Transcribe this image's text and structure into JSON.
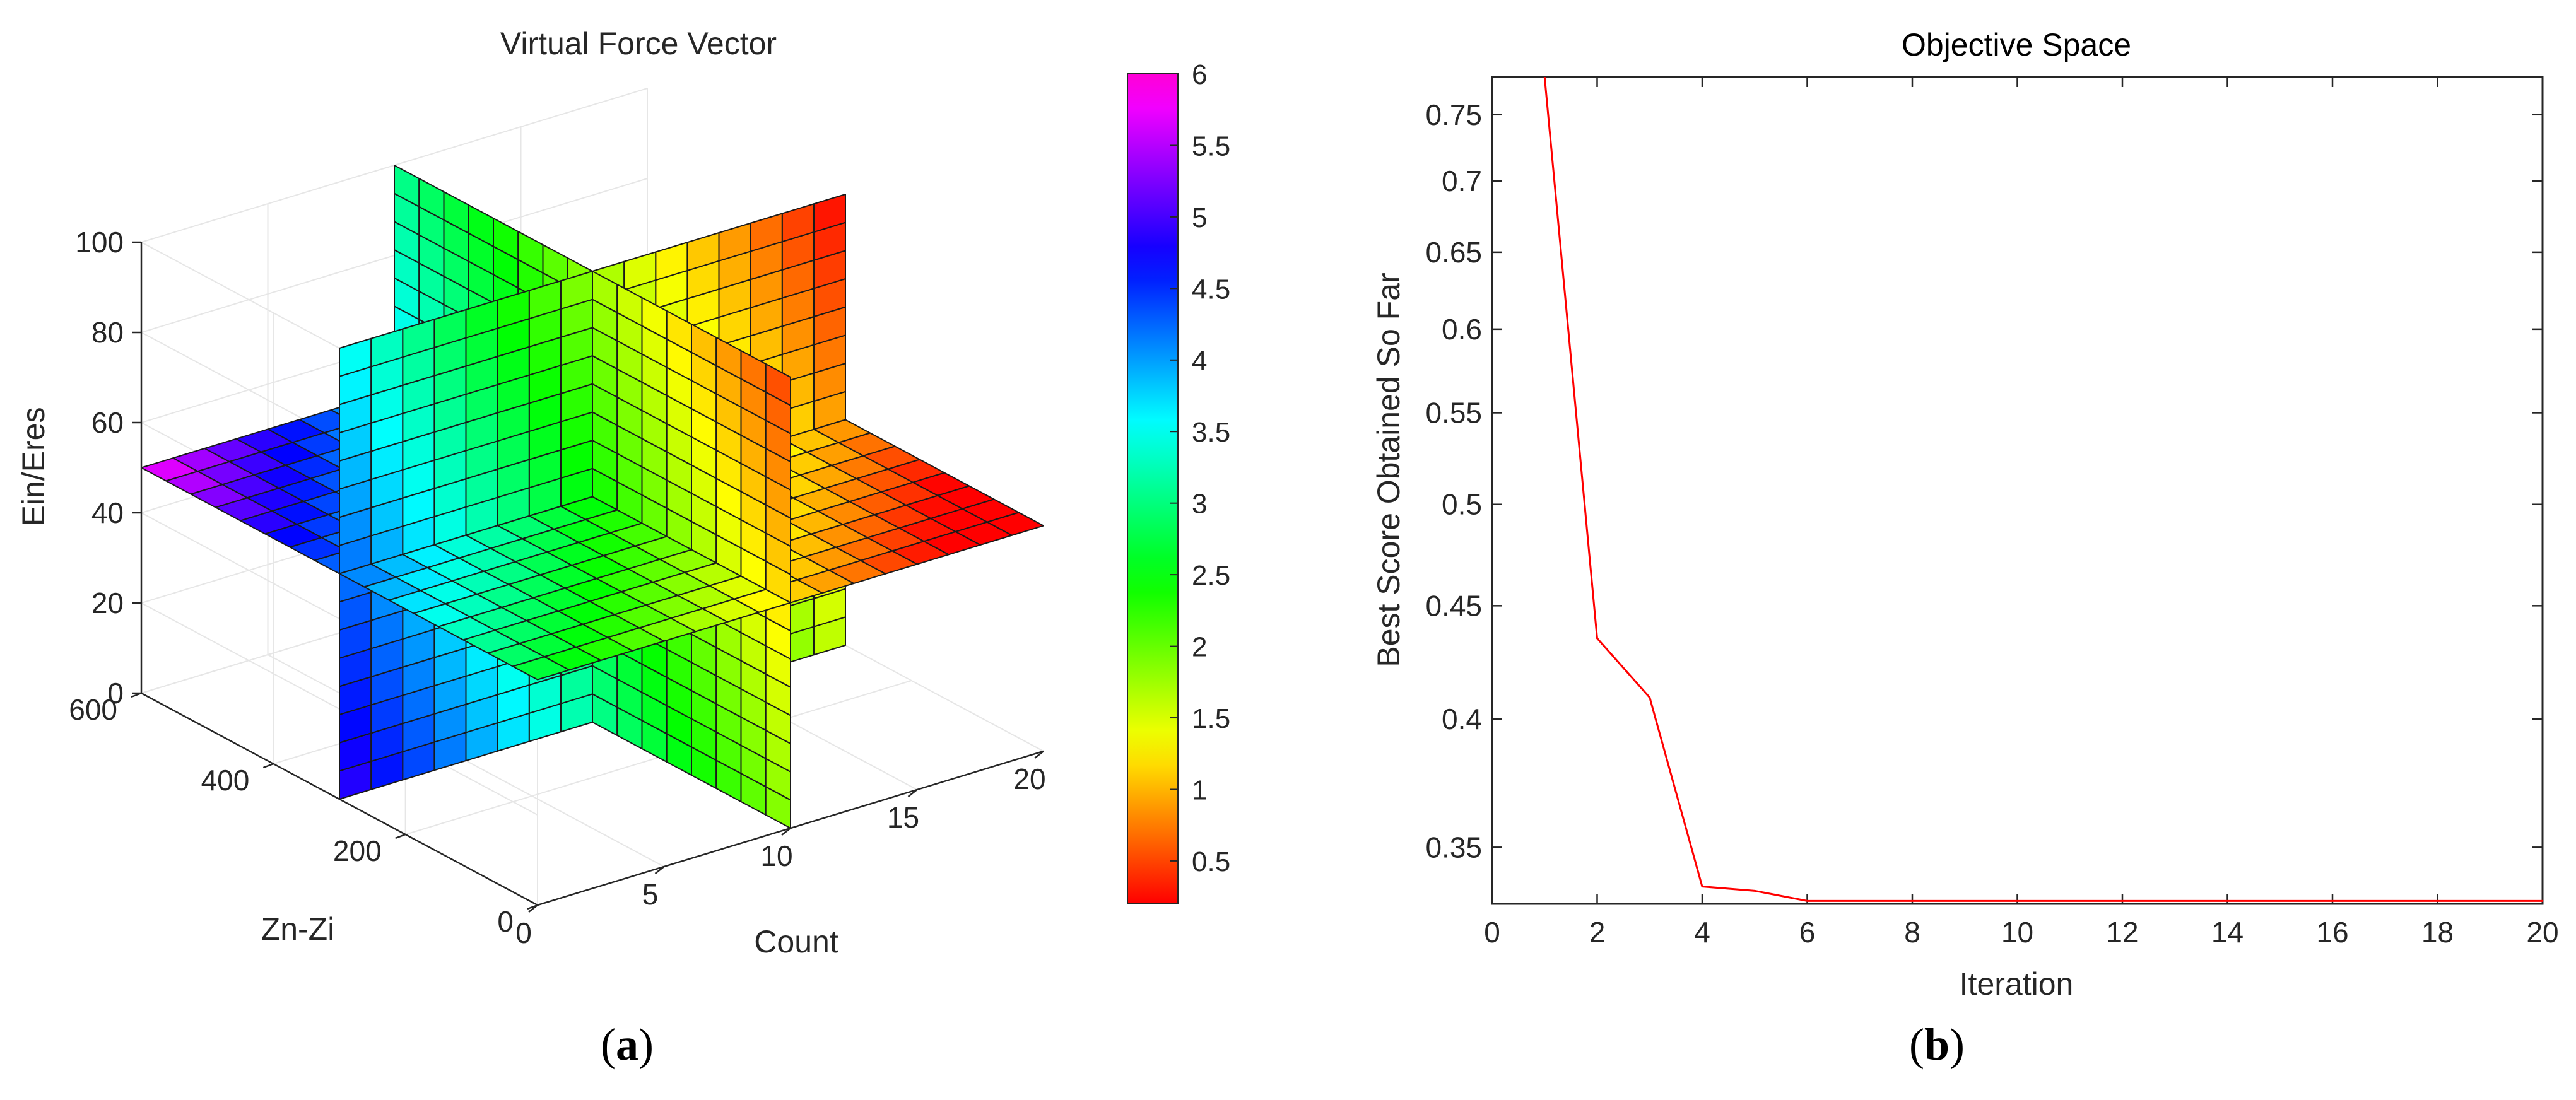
{
  "panel_a": {
    "caption_letter": "a"
  },
  "panel_b": {
    "caption_letter": "b"
  },
  "chart_data": [
    {
      "type": "surface3d",
      "title": "Virtual Force Vector",
      "xlabel": "Count",
      "ylabel": "Zn-Zi",
      "zlabel": "Ein/Eres",
      "xlim": [
        0,
        20
      ],
      "ylim": [
        0,
        600
      ],
      "zlim": [
        0,
        100
      ],
      "x_ticks": [
        "0",
        "5",
        "10",
        "15",
        "20"
      ],
      "y_ticks": [
        "0",
        "200",
        "400",
        "600"
      ],
      "z_ticks": [
        "0",
        "20",
        "40",
        "60",
        "80",
        "100"
      ],
      "slices": {
        "count": 10,
        "zn_zi": 300,
        "ein_eres": 50
      },
      "colorbar": {
        "colormap": "hsv",
        "range": [
          0.2,
          6
        ],
        "ticks": [
          "0.5",
          "1",
          "1.5",
          "2",
          "2.5",
          "3",
          "3.5",
          "4",
          "4.5",
          "5",
          "5.5",
          "6"
        ]
      },
      "grid": true
    },
    {
      "type": "line",
      "title": "Objective Space",
      "xlabel": "Iteration",
      "ylabel": "Best Score Obtained So Far",
      "xlim": [
        0,
        20
      ],
      "ylim": [
        0.33,
        0.78
      ],
      "y_scale": "log",
      "x_ticks": [
        "0",
        "2",
        "4",
        "6",
        "8",
        "10",
        "12",
        "14",
        "16",
        "18",
        "20"
      ],
      "y_ticks": [
        "0.35",
        "0.4",
        "0.45",
        "0.5",
        "0.55",
        "0.6",
        "0.65",
        "0.7",
        "0.75"
      ],
      "series": [
        {
          "color": "#ff0000",
          "x": [
            1,
            2,
            3,
            4,
            5,
            6,
            7,
            8,
            9,
            10,
            11,
            12,
            13,
            14,
            15,
            16,
            17,
            18,
            19,
            20
          ],
          "values": [
            0.78,
            0.435,
            0.409,
            0.336,
            0.3345,
            0.331,
            0.331,
            0.331,
            0.331,
            0.331,
            0.331,
            0.331,
            0.331,
            0.331,
            0.331,
            0.331,
            0.331,
            0.331,
            0.331,
            0.331
          ]
        }
      ],
      "grid": false
    }
  ]
}
